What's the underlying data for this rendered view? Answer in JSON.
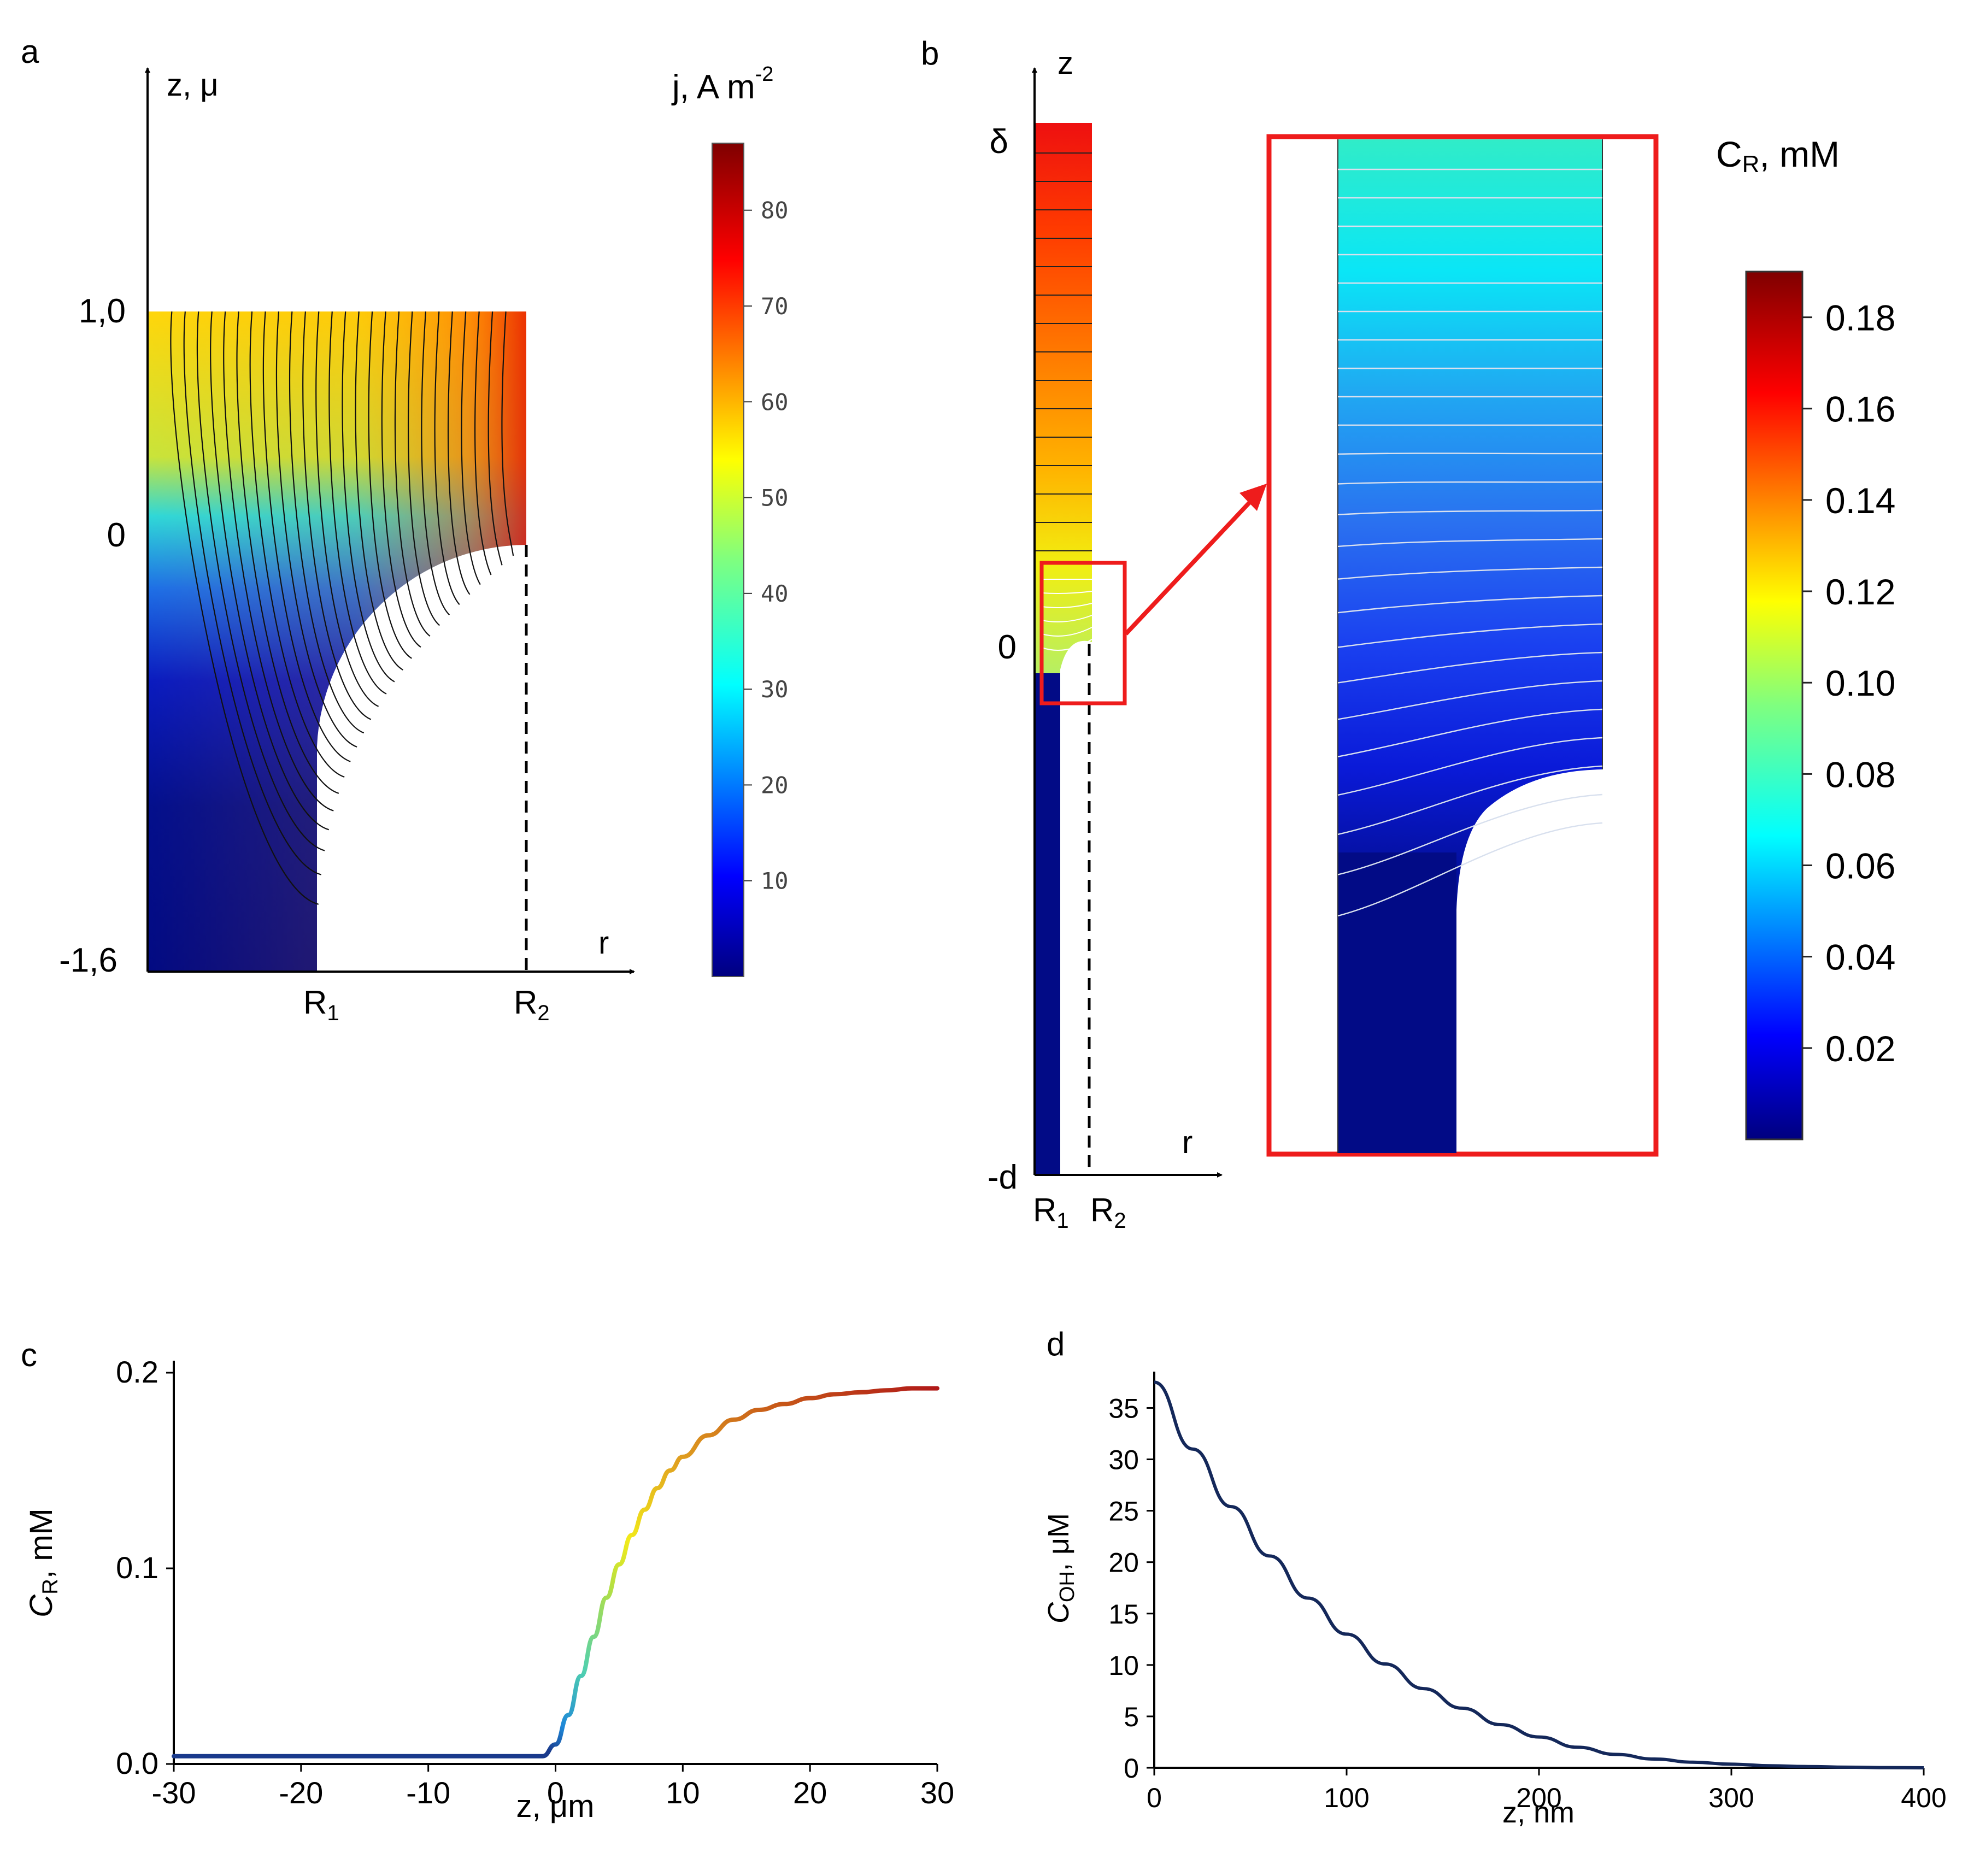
{
  "panels": {
    "a": {
      "letter": "a",
      "z_axis_label": "z, μ",
      "r_axis_label": "r",
      "z_ticks": [
        "1,0",
        "0",
        "-1,6"
      ],
      "r_labels": [
        {
          "main": "R",
          "sub": "1"
        },
        {
          "main": "R",
          "sub": "2"
        }
      ],
      "colorbar": {
        "title_main": "j, A m",
        "title_sup": "-2",
        "range": [
          0,
          87
        ],
        "ticks": [
          "80",
          "70",
          "60",
          "50",
          "40",
          "30",
          "20",
          "10"
        ]
      }
    },
    "b": {
      "letter": "b",
      "z_axis_label": "z",
      "r_axis_label": "r",
      "z_ticks": [
        "δ",
        "0",
        "-d"
      ],
      "r_labels": [
        {
          "main": "R",
          "sub": "1"
        },
        {
          "main": "R",
          "sub": "2"
        }
      ],
      "colorbar": {
        "title_main": "C",
        "title_sub": "R",
        "title_rest": ", mM",
        "range": [
          0,
          0.19
        ],
        "ticks": [
          "0.18",
          "0.16",
          "0.14",
          "0.12",
          "0.10",
          "0.08",
          "0.06",
          "0.04",
          "0.02"
        ]
      }
    },
    "c": {
      "letter": "c"
    },
    "d": {
      "letter": "d"
    }
  },
  "colors": {
    "highlight_red": "#ee1c1c",
    "curve_navy": "#14285a"
  },
  "chart_data": [
    {
      "panel": "c",
      "type": "line",
      "title": "",
      "xlabel": "z, μm",
      "ylabel_main": "C",
      "ylabel_sub": "R",
      "ylabel_rest": ", mM",
      "xlim": [
        -30,
        30
      ],
      "ylim": [
        0,
        0.2
      ],
      "xticks": [
        "-30",
        "-20",
        "-10",
        "0",
        "10",
        "20",
        "30"
      ],
      "yticks": [
        "0.0",
        "0.1",
        "0.2"
      ],
      "series": [
        {
          "name": "C_R",
          "color_scale": "jet",
          "x": [
            -30,
            -20,
            -10,
            -2,
            -1,
            0,
            1,
            2,
            3,
            4,
            5,
            6,
            7,
            8,
            9,
            10,
            12,
            14,
            16,
            18,
            20,
            22,
            24,
            26,
            28,
            30
          ],
          "y": [
            0.004,
            0.004,
            0.004,
            0.004,
            0.004,
            0.01,
            0.025,
            0.045,
            0.065,
            0.085,
            0.102,
            0.117,
            0.13,
            0.141,
            0.15,
            0.157,
            0.168,
            0.176,
            0.181,
            0.184,
            0.187,
            0.189,
            0.19,
            0.191,
            0.192,
            0.192
          ]
        }
      ]
    },
    {
      "panel": "d",
      "type": "line",
      "title": "",
      "xlabel": "z, nm",
      "ylabel_main": "C",
      "ylabel_sub": "OH",
      "ylabel_rest": ", μM",
      "xlim": [
        0,
        400
      ],
      "ylim": [
        0,
        38
      ],
      "xticks": [
        "0",
        "100",
        "200",
        "300",
        "400"
      ],
      "yticks": [
        "0",
        "5",
        "10",
        "15",
        "20",
        "25",
        "30",
        "35"
      ],
      "series": [
        {
          "name": "C_OH",
          "x": [
            0,
            20,
            40,
            60,
            80,
            100,
            120,
            140,
            160,
            180,
            200,
            220,
            240,
            260,
            280,
            300,
            320,
            340,
            360,
            380,
            400
          ],
          "y": [
            37.5,
            31.0,
            25.4,
            20.6,
            16.5,
            13.0,
            10.1,
            7.7,
            5.8,
            4.2,
            3.0,
            2.0,
            1.3,
            0.85,
            0.55,
            0.35,
            0.2,
            0.12,
            0.06,
            0.02,
            0.0
          ]
        }
      ]
    }
  ]
}
